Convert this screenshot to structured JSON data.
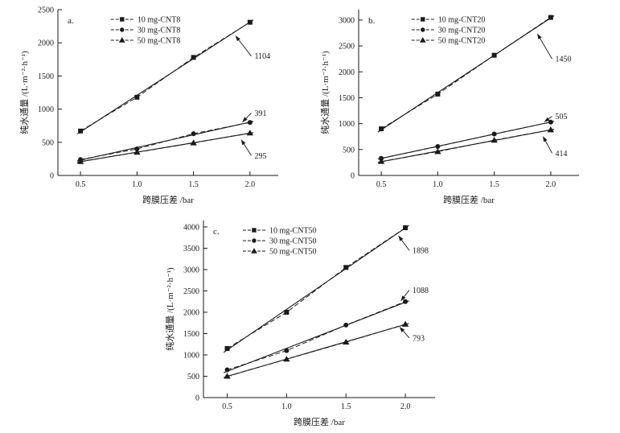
{
  "figure": {
    "background": "#ffffff",
    "ink": "#1a1a1a"
  },
  "chart_data": [
    {
      "id": "a",
      "type": "line",
      "panel_label": "a.",
      "xlabel": "跨膜压差 /bar",
      "ylabel": "纯水通量 /(L·m⁻²·h⁻¹)",
      "x": [
        0.5,
        1.0,
        1.5,
        2.0
      ],
      "xlim": [
        0.3,
        2.25
      ],
      "xticks": [
        0.5,
        1.0,
        1.5,
        2.0
      ],
      "ylim": [
        0,
        2500
      ],
      "yticks": [
        0,
        500,
        1000,
        1500,
        2000,
        2500
      ],
      "grid": false,
      "legend_position": "top-center-left",
      "legend_x": 0.24,
      "series": [
        {
          "name": "10 mg-CNT8",
          "marker": "square",
          "values": [
            670,
            1180,
            1780,
            2310
          ]
        },
        {
          "name": "30 mg-CNT8",
          "marker": "circle",
          "values": [
            240,
            400,
            630,
            800
          ]
        },
        {
          "name": "50 mg-CNT8",
          "marker": "triangle",
          "values": [
            210,
            350,
            490,
            640
          ]
        }
      ],
      "annotations": [
        {
          "label": "1104",
          "text_at": [
            2.04,
            1800
          ],
          "arrow_to": [
            1.87,
            2110
          ]
        },
        {
          "label": "391",
          "text_at": [
            2.04,
            940
          ],
          "arrow_to": [
            1.93,
            800
          ]
        },
        {
          "label": "295",
          "text_at": [
            2.04,
            300
          ],
          "arrow_to": [
            1.92,
            545
          ]
        }
      ]
    },
    {
      "id": "b",
      "type": "line",
      "panel_label": "b.",
      "xlabel": "跨膜压差 /bar",
      "ylabel": "纯水通量 /(L·m⁻²·h⁻¹)",
      "x": [
        0.5,
        1.0,
        1.5,
        2.0
      ],
      "xlim": [
        0.3,
        2.25
      ],
      "xticks": [
        0.5,
        1.0,
        1.5,
        2.0
      ],
      "ylim": [
        0,
        3200
      ],
      "yticks": [
        0,
        500,
        1000,
        1500,
        2000,
        2500,
        3000
      ],
      "grid": false,
      "legend_position": "top-center-left",
      "legend_x": 0.24,
      "series": [
        {
          "name": "10 mg-CNT20",
          "marker": "square",
          "values": [
            900,
            1570,
            2320,
            3050
          ]
        },
        {
          "name": "30 mg-CNT20",
          "marker": "circle",
          "values": [
            330,
            560,
            800,
            1030
          ]
        },
        {
          "name": "50 mg-CNT20",
          "marker": "triangle",
          "values": [
            270,
            460,
            680,
            880
          ]
        }
      ],
      "annotations": [
        {
          "label": "1450",
          "text_at": [
            2.04,
            2250
          ],
          "arrow_to": [
            1.88,
            2740
          ]
        },
        {
          "label": "505",
          "text_at": [
            2.04,
            1140
          ],
          "arrow_to": [
            1.94,
            1030
          ]
        },
        {
          "label": "414",
          "text_at": [
            2.04,
            430
          ],
          "arrow_to": [
            1.93,
            760
          ]
        }
      ]
    },
    {
      "id": "c",
      "type": "line",
      "panel_label": "c.",
      "xlabel": "跨膜压差 /bar",
      "ylabel": "纯水通量 /(L·m⁻²·h⁻¹)",
      "x": [
        0.5,
        1.0,
        1.5,
        2.0
      ],
      "xlim": [
        0.3,
        2.25
      ],
      "xticks": [
        0.5,
        1.0,
        1.5,
        2.0
      ],
      "ylim": [
        0,
        4150
      ],
      "yticks": [
        0,
        500,
        1000,
        1500,
        2000,
        2500,
        3000,
        3500,
        4000
      ],
      "grid": false,
      "legend_position": "top-left",
      "legend_x": 0.17,
      "series": [
        {
          "name": "10 mg-CNT50",
          "marker": "square",
          "values": [
            1150,
            2000,
            3050,
            3980
          ]
        },
        {
          "name": "30 mg-CNT50",
          "marker": "circle",
          "values": [
            650,
            1100,
            1700,
            2250
          ]
        },
        {
          "name": "50 mg-CNT50",
          "marker": "triangle",
          "values": [
            500,
            900,
            1300,
            1720
          ]
        }
      ],
      "annotations": [
        {
          "label": "1898",
          "text_at": [
            2.06,
            3450
          ],
          "arrow_to": [
            1.94,
            3800
          ]
        },
        {
          "label": "1088",
          "text_at": [
            2.06,
            2520
          ],
          "arrow_to": [
            1.96,
            2260
          ]
        },
        {
          "label": "793",
          "text_at": [
            2.06,
            1400
          ],
          "arrow_to": [
            1.95,
            1660
          ]
        }
      ]
    }
  ]
}
